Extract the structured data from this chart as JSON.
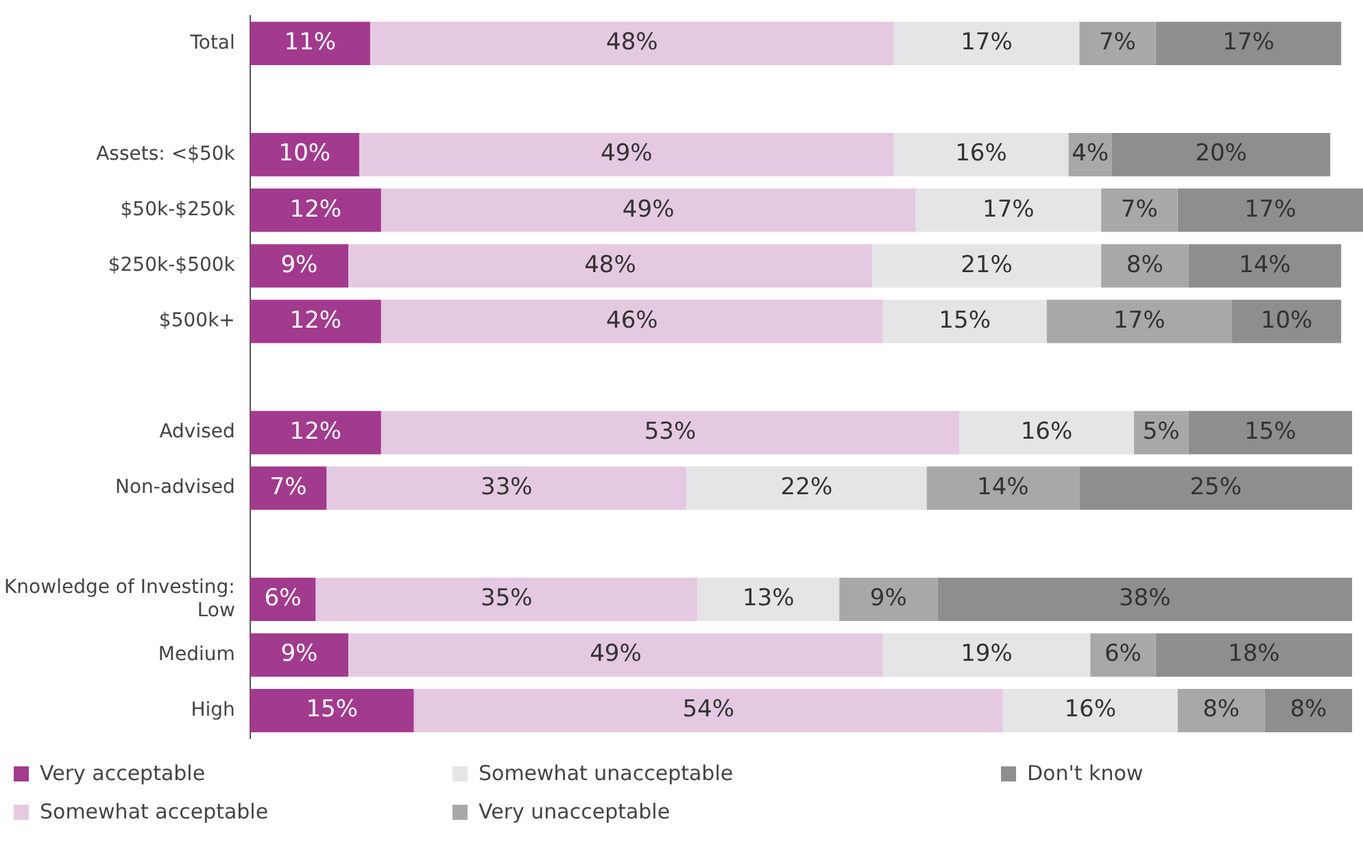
{
  "chart_data": {
    "type": "bar",
    "orientation": "horizontal",
    "stacked": true,
    "legend": "bottom",
    "grid": false,
    "tick_labels": "y",
    "xlim": [
      0,
      102
    ],
    "categories": [
      "Total",
      null,
      "Assets: <$50k",
      "$50k-$250k",
      "$250k-$500k",
      "$500k+",
      null,
      "Advised",
      "Non-advised",
      null,
      "Knowledge of Investing:\nLow",
      "Medium",
      "High"
    ],
    "series": [
      {
        "name": "Very acceptable",
        "color": "#a23a8e",
        "values": [
          11,
          null,
          10,
          12,
          9,
          12,
          null,
          12,
          7,
          null,
          6,
          9,
          15
        ],
        "value_labels": [
          "11%",
          null,
          "10%",
          "12%",
          "9%",
          "12%",
          null,
          "12%",
          "7%",
          null,
          "6%",
          "9%",
          "15%"
        ]
      },
      {
        "name": "Somewhat acceptable",
        "color": "#e5c9e1",
        "values": [
          48,
          null,
          49,
          49,
          48,
          46,
          null,
          53,
          33,
          null,
          35,
          49,
          54
        ],
        "value_labels": [
          "48%",
          null,
          "49%",
          "49%",
          "48%",
          "46%",
          null,
          "53%",
          "33%",
          null,
          "35%",
          "49%",
          "54%"
        ]
      },
      {
        "name": "Somewhat unacceptable",
        "color": "#e5e5e7",
        "values": [
          17,
          null,
          16,
          17,
          21,
          15,
          null,
          16,
          22,
          null,
          13,
          19,
          16
        ],
        "value_labels": [
          "17%",
          null,
          "16%",
          "17%",
          "21%",
          "15%",
          null,
          "16%",
          "22%",
          null,
          "13%",
          "19%",
          "16%"
        ]
      },
      {
        "name": "Very unacceptable",
        "color": "#a8a8aa",
        "values": [
          7,
          null,
          4,
          7,
          8,
          17,
          null,
          5,
          14,
          null,
          9,
          6,
          8
        ],
        "value_labels": [
          "7%",
          null,
          "4%",
          "7%",
          "8%",
          "17%",
          null,
          "5%",
          "14%",
          null,
          "9%",
          "6%",
          "8%"
        ]
      },
      {
        "name": "Don't know",
        "color": "#8e8e90",
        "values": [
          17,
          null,
          20,
          17,
          14,
          10,
          null,
          15,
          25,
          null,
          38,
          18,
          8
        ],
        "value_labels": [
          "17%",
          null,
          "20%",
          "17%",
          "14%",
          "10%",
          null,
          "15%",
          "25%",
          null,
          "38%",
          "18%",
          "8%"
        ]
      }
    ]
  }
}
